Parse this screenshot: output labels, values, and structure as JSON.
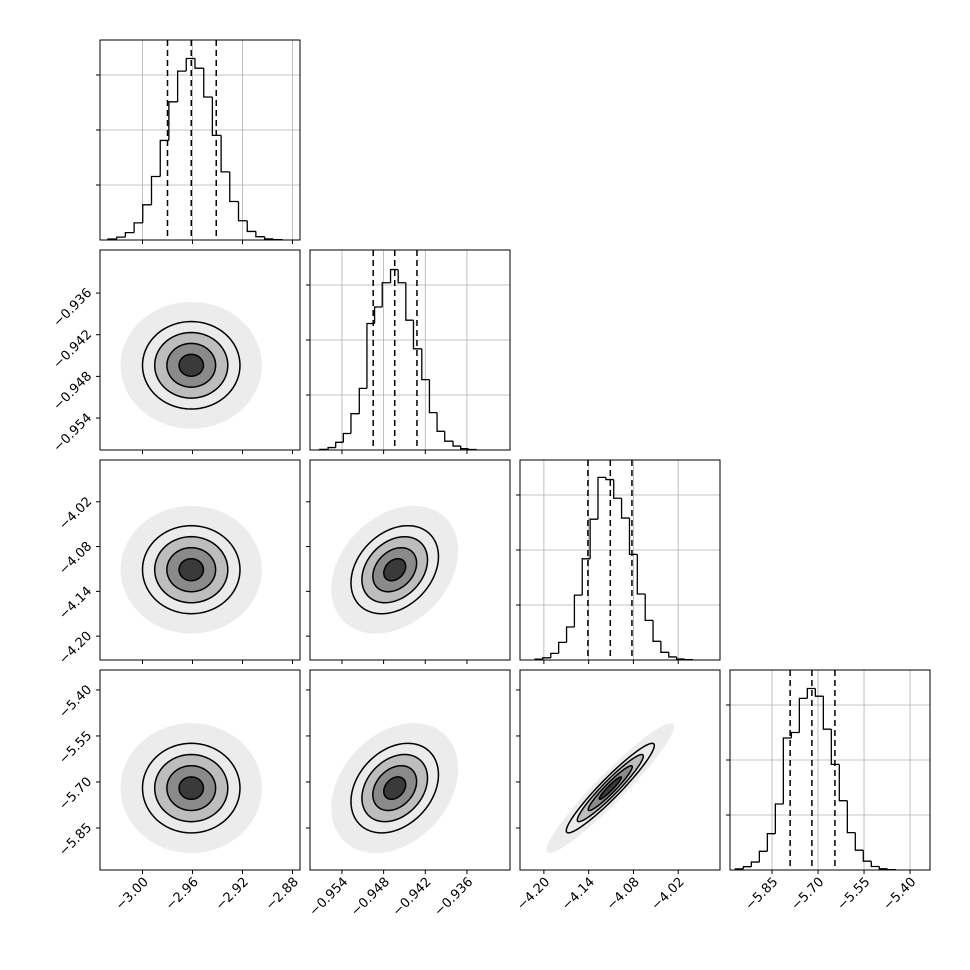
{
  "chart_data": {
    "type": "corner",
    "levels": [
      0.5,
      1,
      1.5,
      2
    ],
    "hist_ylim": [
      0,
      1818
    ],
    "hist_yticks": [
      500,
      1000,
      1500
    ],
    "rho": [
      [
        0.0
      ],
      [
        0.0,
        0.3
      ],
      [
        0.0,
        0.3,
        0.95
      ]
    ],
    "params": [
      {
        "lim": [
          -3.034,
          -2.874
        ],
        "ticks": [
          {
            "value": -3.0,
            "label": "−3.00"
          },
          {
            "value": -2.96,
            "label": "−2.96"
          },
          {
            "value": -2.92,
            "label": "−2.92"
          },
          {
            "value": -2.88,
            "label": "−2.88"
          }
        ],
        "mean": -2.961,
        "sigma": 0.0195,
        "quantiles": [
          -2.98,
          -2.961,
          -2.941
        ],
        "bins": [
          -3.0276,
          -3.0206,
          -3.0137,
          -3.0067,
          -2.9998,
          -2.9928,
          -2.9858,
          -2.9789,
          -2.9719,
          -2.965,
          -2.958,
          -2.951,
          -2.9441,
          -2.9371,
          -2.9302,
          -2.9232,
          -2.9162,
          -2.9093,
          -2.9023,
          -2.8954,
          -2.8884
        ],
        "counts": [
          9,
          26,
          67,
          156,
          320,
          577,
          905,
          1256,
          1535,
          1650,
          1562,
          1300,
          951,
          619,
          350,
          175,
          78,
          30,
          10,
          3
        ]
      },
      {
        "lim": [
          -0.9586,
          -0.9298
        ],
        "ticks": [
          {
            "value": -0.954,
            "label": "−0.954"
          },
          {
            "value": -0.948,
            "label": "−0.948"
          },
          {
            "value": -0.942,
            "label": "−0.942"
          },
          {
            "value": -0.936,
            "label": "−0.936"
          }
        ],
        "mean": -0.9464,
        "sigma": 0.00315,
        "quantiles": [
          -0.9495,
          -0.9464,
          -0.9432
        ],
        "bins": [
          -0.9572,
          -0.956,
          -0.9549,
          -0.9538,
          -0.9527,
          -0.9515,
          -0.9504,
          -0.9493,
          -0.9482,
          -0.947,
          -0.9459,
          -0.9448,
          -0.9437,
          -0.9425,
          -0.9414,
          -0.9403,
          -0.9392,
          -0.938,
          -0.9369,
          -0.9358,
          -0.9347
        ],
        "counts": [
          6,
          22,
          70,
          150,
          330,
          560,
          1150,
          1300,
          1520,
          1640,
          1520,
          1180,
          920,
          640,
          340,
          170,
          80,
          36,
          12,
          4
        ]
      },
      {
        "lim": [
          -4.232,
          -3.964
        ],
        "ticks": [
          {
            "value": -4.2,
            "label": "−4.20"
          },
          {
            "value": -4.14,
            "label": "−4.14"
          },
          {
            "value": -4.08,
            "label": "−4.08"
          },
          {
            "value": -4.02,
            "label": "−4.02"
          }
        ],
        "mean": -4.111,
        "sigma": 0.0295,
        "quantiles": [
          -4.141,
          -4.111,
          -4.082
        ],
        "bins": [
          -4.2118,
          -4.2013,
          -4.1907,
          -4.1802,
          -4.1696,
          -4.1591,
          -4.1486,
          -4.138,
          -4.1275,
          -4.1169,
          -4.1064,
          -4.0959,
          -4.0853,
          -4.0748,
          -4.0642,
          -4.0537,
          -4.0432,
          -4.0326,
          -4.0221,
          -4.0115,
          -4.001
        ],
        "counts": [
          8,
          20,
          60,
          160,
          300,
          590,
          920,
          1280,
          1660,
          1640,
          1470,
          1290,
          960,
          600,
          360,
          170,
          70,
          28,
          9,
          3
        ]
      },
      {
        "lim": [
          -5.987,
          -5.335
        ],
        "ticks": [
          {
            "value": -5.85,
            "label": "−5.85"
          },
          {
            "value": -5.7,
            "label": "−5.70"
          },
          {
            "value": -5.55,
            "label": "−5.55"
          },
          {
            "value": -5.4,
            "label": "−5.40"
          }
        ],
        "mean": -5.72,
        "sigma": 0.073,
        "quantiles": [
          -5.791,
          -5.72,
          -5.645
        ],
        "bins": [
          -5.9695,
          -5.9434,
          -5.9174,
          -5.8913,
          -5.8652,
          -5.8392,
          -5.8131,
          -5.787,
          -5.7609,
          -5.7349,
          -5.7088,
          -5.6827,
          -5.6567,
          -5.6306,
          -5.6045,
          -5.5785,
          -5.5524,
          -5.5263,
          -5.5002,
          -5.4742,
          -5.4481
        ],
        "counts": [
          10,
          30,
          72,
          170,
          330,
          600,
          1200,
          1250,
          1560,
          1650,
          1580,
          1280,
          960,
          630,
          340,
          180,
          80,
          32,
          11,
          3
        ]
      }
    ]
  }
}
